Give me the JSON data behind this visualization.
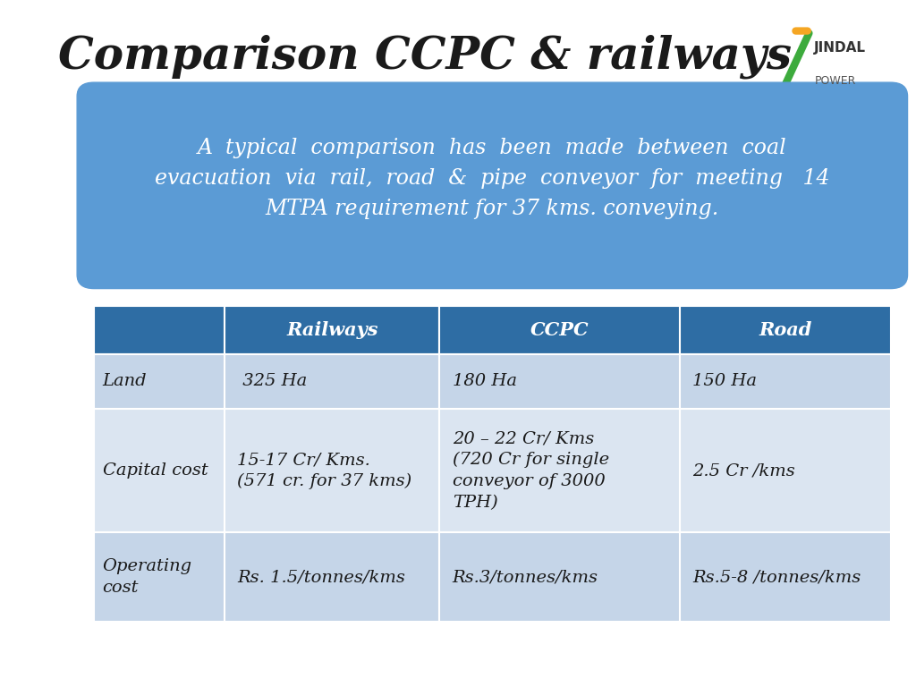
{
  "title": "Comparison CCPC & railways",
  "title_fontsize": 36,
  "bg_color": "#ffffff",
  "info_box_color": "#5b9bd5",
  "info_text": "A  typical  comparison  has  been  made  between  coal\nevacuation  via  rail,  road  &  pipe  conveyor  for  meeting   14\nMTPA requirement for 37 kms. conveying.",
  "info_text_color": "#ffffff",
  "info_fontsize": 17,
  "table_header_color": "#2e6da4",
  "table_row_even_color": "#dbe5f1",
  "table_row_odd_color": "#c5d5e8",
  "table_text_color": "#ffffff",
  "table_body_text_color": "#1a1a2e",
  "table_header_fontsize": 15,
  "table_body_fontsize": 14,
  "col_labels": [
    "",
    "Railways",
    "CCPC",
    "Road"
  ],
  "rows": [
    [
      "Land",
      " 325 Ha",
      "180 Ha",
      "150 Ha"
    ],
    [
      "Capital cost",
      "15-17 Cr/ Kms.\n(571 cr. for 37 kms)",
      "20 – 22 Cr/ Kms\n(720 Cr for single\nconveyor of 3000\nTPH)",
      "2.5 Cr /kms"
    ],
    [
      "Operating\ncost",
      "Rs. 1.5/tonnes/kms",
      "Rs.3/tonnes/kms",
      "Rs.5-8 /tonnes/kms"
    ]
  ],
  "jindal_text": "JINDAL\nPOWER",
  "logo_green": "#3dab3d",
  "logo_orange": "#f5a623"
}
